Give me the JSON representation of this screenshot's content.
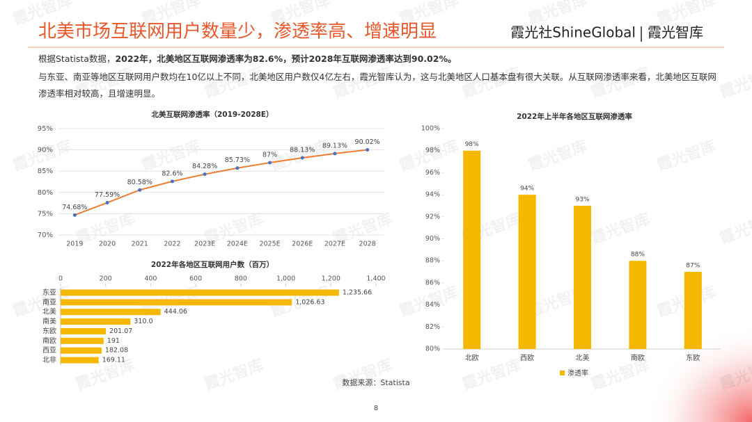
{
  "header": {
    "title": "北美市场互联网用户数量少，渗透率高、增速明显",
    "brand": "霞光社ShineGlobal",
    "brand_sub": "霞光智库"
  },
  "body": {
    "paragraph_1": {
      "lead": "根据Statista数据，",
      "bold": "2022年，北美地区互联网渗透率为82.6%，预计2028年互联网渗透率达到90.02%。"
    },
    "paragraph_2": "与东亚、南亚等地区互联网用户数均在10亿以上不同，北美地区用户数仅4亿左右，霞光智库认为，这与北美地区人口基本盘有很大关联。从互联网渗透率来看，北美地区互联网渗透率相对较高，且增速明显。"
  },
  "footer": {
    "source": "数据来源：Statista",
    "page": "8"
  },
  "watermark": "霞光智库",
  "chart_data": [
    {
      "type": "line",
      "title": "北美互联网渗透率（2019-2028E）",
      "categories": [
        "2019",
        "2020",
        "2021",
        "2022",
        "2023E",
        "2024E",
        "2025E",
        "2026E",
        "2027E",
        "2028"
      ],
      "values": [
        74.68,
        77.59,
        80.58,
        82.6,
        84.28,
        85.73,
        87,
        88.13,
        89.13,
        90.02
      ],
      "value_labels": [
        "74.68%",
        "77.59%",
        "80.58%",
        "82.6%",
        "84.28%",
        "85.73%",
        "87%",
        "88.13%",
        "89.13%",
        "90.02%"
      ],
      "color": "#ed7d31",
      "ylim": [
        70,
        95
      ],
      "yticks": [
        {
          "value": 70,
          "label": "70%"
        },
        {
          "value": 75,
          "label": "75%"
        },
        {
          "value": 80,
          "label": "80%"
        },
        {
          "value": 85,
          "label": "85%"
        },
        {
          "value": 90,
          "label": "90%"
        },
        {
          "value": 95,
          "label": "95%"
        }
      ],
      "grid": true
    },
    {
      "type": "hbar",
      "title": "2022年各地区互联网用户数（百万）",
      "categories": [
        "东亚",
        "南亚",
        "北美",
        "南美",
        "东欧",
        "南欧",
        "西亚",
        "北非"
      ],
      "values": [
        1235.66,
        1026.63,
        444.06,
        310.0,
        201.07,
        191,
        182.08,
        169.11
      ],
      "value_labels": [
        "1,235.66",
        "1,026.63",
        "444.06",
        "310.0",
        "201.07",
        "191",
        "182.08",
        "169.11"
      ],
      "color": "#f5b800",
      "xlim": [
        0,
        1400
      ],
      "xticks": [
        0,
        200,
        400,
        600,
        800,
        {
          "value": 1000,
          "label": "1,000"
        },
        {
          "value": 1200,
          "label": "1,200"
        },
        {
          "value": 1400,
          "label": "1,400"
        }
      ]
    },
    {
      "type": "bar",
      "title": "2022年上半年各地区互联网渗透率",
      "categories": [
        "北欧",
        "西欧",
        "北美",
        "南欧",
        "东欧"
      ],
      "series": [
        {
          "name": "渗透率",
          "color": "#f5b800",
          "values": [
            98,
            94,
            93,
            88,
            87
          ],
          "value_labels": [
            "98%",
            "94%",
            "93%",
            "88%",
            "87%"
          ]
        }
      ],
      "ylim": [
        80,
        100
      ],
      "yticks": [
        {
          "value": 80,
          "label": "80%"
        },
        {
          "value": 82,
          "label": "82%"
        },
        {
          "value": 84,
          "label": "84%"
        },
        {
          "value": 86,
          "label": "86%"
        },
        {
          "value": 88,
          "label": "88%"
        },
        {
          "value": 90,
          "label": "90%"
        },
        {
          "value": 92,
          "label": "92%"
        },
        {
          "value": 94,
          "label": "94%"
        },
        {
          "value": 96,
          "label": "96%"
        },
        {
          "value": 98,
          "label": "98%"
        },
        {
          "value": 100,
          "label": "100%"
        }
      ],
      "legend": "bottom"
    }
  ]
}
